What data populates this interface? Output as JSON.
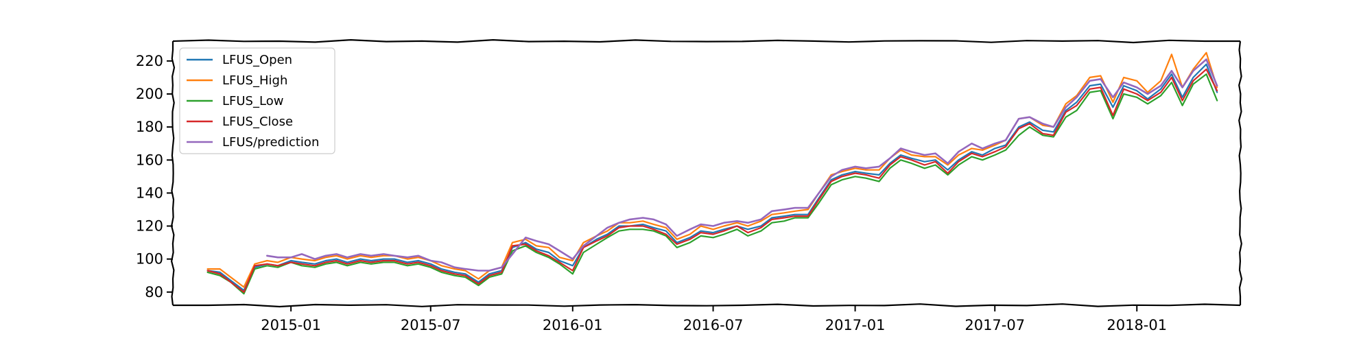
{
  "chart_data": {
    "type": "line",
    "title": "",
    "xlabel": "",
    "ylabel": "",
    "xlim": [
      "2014-08-01",
      "2018-05-15"
    ],
    "ylim": [
      72,
      232
    ],
    "x_ticks": [
      "2015-01-01",
      "2015-07-01",
      "2016-01-01",
      "2016-07-01",
      "2017-01-01",
      "2017-07-01",
      "2018-01-01"
    ],
    "x_tick_labels": [
      "2015-01",
      "2015-07",
      "2016-01",
      "2016-07",
      "2017-01",
      "2017-07",
      "2018-01"
    ],
    "y_ticks": [
      80,
      100,
      120,
      140,
      160,
      180,
      200,
      220
    ],
    "grid": false,
    "legend_position": "top-left",
    "x": [
      "2014-09-15",
      "2014-10-01",
      "2014-10-15",
      "2014-11-01",
      "2014-11-15",
      "2014-12-01",
      "2014-12-15",
      "2015-01-01",
      "2015-01-15",
      "2015-02-01",
      "2015-02-15",
      "2015-03-01",
      "2015-03-15",
      "2015-04-01",
      "2015-04-15",
      "2015-05-01",
      "2015-05-15",
      "2015-06-01",
      "2015-06-15",
      "2015-07-01",
      "2015-07-15",
      "2015-08-01",
      "2015-08-15",
      "2015-09-01",
      "2015-09-15",
      "2015-10-01",
      "2015-10-15",
      "2015-11-01",
      "2015-11-15",
      "2015-12-01",
      "2015-12-15",
      "2016-01-01",
      "2016-01-15",
      "2016-02-01",
      "2016-02-15",
      "2016-03-01",
      "2016-03-15",
      "2016-04-01",
      "2016-04-15",
      "2016-05-01",
      "2016-05-15",
      "2016-06-01",
      "2016-06-15",
      "2016-07-01",
      "2016-07-15",
      "2016-08-01",
      "2016-08-15",
      "2016-09-01",
      "2016-09-15",
      "2016-10-01",
      "2016-10-15",
      "2016-11-01",
      "2016-11-15",
      "2016-12-01",
      "2016-12-15",
      "2017-01-01",
      "2017-01-15",
      "2017-02-01",
      "2017-02-15",
      "2017-03-01",
      "2017-03-15",
      "2017-04-01",
      "2017-04-15",
      "2017-05-01",
      "2017-05-15",
      "2017-06-01",
      "2017-06-15",
      "2017-07-01",
      "2017-07-15",
      "2017-08-01",
      "2017-08-15",
      "2017-09-01",
      "2017-09-15",
      "2017-10-01",
      "2017-10-15",
      "2017-11-01",
      "2017-11-15",
      "2017-12-01",
      "2017-12-15",
      "2018-01-01",
      "2018-01-15",
      "2018-02-01",
      "2018-02-15",
      "2018-03-01",
      "2018-03-15",
      "2018-04-01",
      "2018-04-15"
    ],
    "series": [
      {
        "name": "LFUS_Open",
        "color": "#1f77b4",
        "values": [
          93,
          92,
          87,
          81,
          95,
          97,
          96,
          99,
          98,
          97,
          99,
          100,
          98,
          100,
          99,
          100,
          100,
          98,
          99,
          97,
          94,
          92,
          91,
          86,
          91,
          93,
          107,
          110,
          106,
          104,
          99,
          96,
          107,
          112,
          115,
          120,
          120,
          121,
          119,
          117,
          110,
          113,
          117,
          116,
          118,
          120,
          118,
          120,
          125,
          126,
          127,
          127,
          137,
          148,
          151,
          153,
          152,
          151,
          158,
          163,
          161,
          159,
          160,
          154,
          160,
          165,
          163,
          167,
          169,
          180,
          183,
          178,
          177,
          190,
          195,
          205,
          206,
          192,
          205,
          202,
          197,
          203,
          212,
          198,
          210,
          218,
          201
        ]
      },
      {
        "name": "LFUS_High",
        "color": "#ff7f0e",
        "values": [
          94,
          94,
          89,
          83,
          97,
          99,
          98,
          101,
          100,
          99,
          101,
          102,
          100,
          102,
          101,
          102,
          102,
          100,
          101,
          99,
          96,
          94,
          93,
          88,
          93,
          95,
          110,
          112,
          108,
          107,
          101,
          99,
          110,
          114,
          117,
          122,
          122,
          123,
          121,
          119,
          112,
          115,
          120,
          118,
          120,
          122,
          120,
          123,
          127,
          128,
          129,
          130,
          140,
          151,
          153,
          155,
          154,
          154,
          161,
          166,
          163,
          162,
          162,
          157,
          163,
          167,
          166,
          169,
          172,
          185,
          186,
          181,
          180,
          194,
          199,
          210,
          211,
          195,
          210,
          208,
          201,
          208,
          224,
          204,
          215,
          225,
          204
        ]
      },
      {
        "name": "LFUS_Low",
        "color": "#2ca02c",
        "values": [
          92,
          90,
          86,
          79,
          94,
          96,
          95,
          98,
          96,
          95,
          97,
          98,
          96,
          98,
          97,
          98,
          98,
          96,
          97,
          95,
          92,
          90,
          89,
          84,
          89,
          91,
          105,
          108,
          104,
          101,
          97,
          91,
          104,
          109,
          113,
          117,
          118,
          118,
          117,
          114,
          107,
          110,
          114,
          113,
          115,
          118,
          114,
          117,
          122,
          123,
          125,
          125,
          134,
          145,
          148,
          150,
          149,
          147,
          155,
          160,
          158,
          155,
          157,
          151,
          157,
          162,
          160,
          163,
          166,
          175,
          180,
          175,
          174,
          186,
          190,
          201,
          202,
          185,
          200,
          198,
          194,
          199,
          207,
          193,
          206,
          212,
          196
        ]
      },
      {
        "name": "LFUS_Close",
        "color": "#d62728",
        "values": [
          93,
          91,
          86,
          80,
          96,
          97,
          96,
          98,
          97,
          96,
          98,
          99,
          97,
          99,
          98,
          99,
          99,
          97,
          98,
          96,
          93,
          91,
          90,
          85,
          90,
          92,
          108,
          109,
          105,
          102,
          98,
          93,
          107,
          111,
          114,
          119,
          120,
          120,
          118,
          115,
          109,
          112,
          116,
          115,
          117,
          120,
          116,
          119,
          124,
          125,
          126,
          126,
          136,
          147,
          150,
          152,
          151,
          149,
          157,
          162,
          160,
          157,
          159,
          152,
          159,
          164,
          162,
          165,
          168,
          179,
          182,
          176,
          175,
          189,
          193,
          203,
          204,
          187,
          203,
          200,
          196,
          201,
          210,
          196,
          208,
          215,
          202
        ]
      },
      {
        "name": "LFUS/prediction",
        "color": "#9467bd",
        "values": [
          null,
          null,
          null,
          null,
          null,
          102,
          101,
          101,
          103,
          100,
          102,
          103,
          101,
          103,
          102,
          103,
          102,
          101,
          102,
          99,
          98,
          95,
          94,
          93,
          93,
          95,
          103,
          113,
          111,
          109,
          105,
          100,
          108,
          114,
          119,
          122,
          124,
          125,
          124,
          121,
          114,
          118,
          121,
          120,
          122,
          123,
          122,
          124,
          129,
          130,
          131,
          131,
          140,
          150,
          154,
          156,
          155,
          156,
          161,
          167,
          165,
          163,
          164,
          158,
          165,
          170,
          167,
          170,
          172,
          185,
          186,
          182,
          180,
          192,
          198,
          208,
          209,
          198,
          207,
          204,
          200,
          205,
          214,
          204,
          214,
          221,
          205
        ]
      }
    ]
  }
}
